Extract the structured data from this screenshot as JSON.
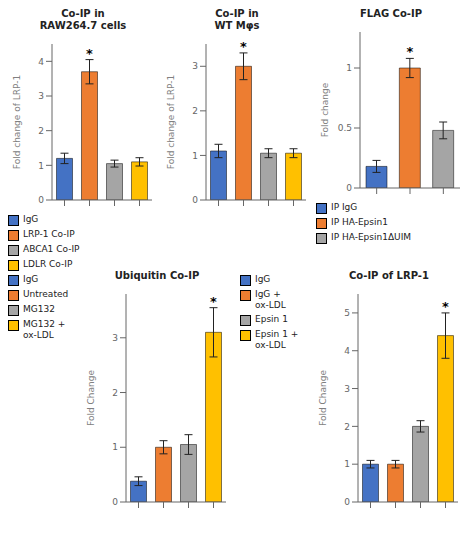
{
  "chart_data": [
    {
      "type": "bar",
      "title": "Co-IP in\nRAW264.7 cells",
      "ylabel": "Fold change of LRP-1",
      "categories": [
        null,
        null,
        null,
        null
      ],
      "values": [
        1.2,
        3.7,
        1.05,
        1.1
      ],
      "errors": [
        0.15,
        0.35,
        0.1,
        0.12
      ],
      "colors": [
        "#4472c4",
        "#ed7d31",
        "#a5a5a5",
        "#ffc000"
      ],
      "ylim": [
        0,
        4.5
      ],
      "yticks": [
        0,
        1,
        2,
        3,
        4
      ],
      "annotations": [
        {
          "text": "*",
          "at": 1
        }
      ]
    },
    {
      "type": "legend",
      "labels": [
        "IgG",
        "LRP-1 Co-IP",
        "ABCA1 Co-IP",
        "LDLR Co-IP"
      ],
      "colors": [
        "#4472c4",
        "#ed7d31",
        "#a5a5a5",
        "#ffc000"
      ]
    },
    {
      "type": "bar",
      "title": "Co-IP in\nWT Mφs",
      "ylabel": "Fold change of LRP-1",
      "categories": [
        null,
        null,
        null,
        null
      ],
      "values": [
        1.1,
        3.0,
        1.05,
        1.05
      ],
      "errors": [
        0.15,
        0.3,
        0.1,
        0.1
      ],
      "colors": [
        "#4472c4",
        "#ed7d31",
        "#a5a5a5",
        "#ffc000"
      ],
      "ylim": [
        0,
        3.5
      ],
      "yticks": [
        0,
        1,
        2,
        3
      ],
      "annotations": [
        {
          "text": "*",
          "at": 1
        }
      ]
    },
    {
      "type": "bar",
      "title": "FLAG Co-IP",
      "ylabel": "Fold change",
      "categories": [
        null,
        null,
        null
      ],
      "values": [
        0.18,
        1.0,
        0.48
      ],
      "errors": [
        0.05,
        0.08,
        0.07
      ],
      "colors": [
        "#4472c4",
        "#ed7d31",
        "#a5a5a5"
      ],
      "ylim": [
        0,
        1.3
      ],
      "yticks": [
        0,
        0.5,
        1
      ],
      "annotations": [
        {
          "text": "*",
          "at": 1
        }
      ]
    },
    {
      "type": "legend",
      "labels": [
        "IP IgG",
        "IP HA-Epsin1",
        "IP HA-Epsin1ΔUIM"
      ],
      "colors": [
        "#4472c4",
        "#ed7d31",
        "#a5a5a5"
      ]
    },
    {
      "type": "legend",
      "labels": [
        "IgG",
        "Untreated",
        "MG132",
        "MG132 +\nox-LDL"
      ],
      "colors": [
        "#4472c4",
        "#ed7d31",
        "#a5a5a5",
        "#ffc000"
      ]
    },
    {
      "type": "bar",
      "title": "Ubiquitin Co-IP",
      "ylabel": "Fold Change",
      "categories": [
        null,
        null,
        null,
        null
      ],
      "values": [
        0.38,
        1.0,
        1.05,
        3.1
      ],
      "errors": [
        0.08,
        0.12,
        0.18,
        0.45
      ],
      "colors": [
        "#4472c4",
        "#ed7d31",
        "#a5a5a5",
        "#ffc000"
      ],
      "ylim": [
        0,
        3.8
      ],
      "yticks": [
        0,
        1,
        2,
        3
      ],
      "annotations": [
        {
          "text": "*",
          "at": 3
        }
      ]
    },
    {
      "type": "legend",
      "labels": [
        "IgG",
        "IgG +\nox-LDL",
        "Epsin 1",
        "Epsin 1 +\nox-LDL"
      ],
      "colors": [
        "#4472c4",
        "#ed7d31",
        "#a5a5a5",
        "#ffc000"
      ]
    },
    {
      "type": "bar",
      "title": "Co-IP of LRP-1",
      "ylabel": "Fold Change",
      "categories": [
        null,
        null,
        null,
        null
      ],
      "values": [
        1.0,
        1.0,
        2.0,
        4.4
      ],
      "errors": [
        0.1,
        0.1,
        0.15,
        0.6
      ],
      "colors": [
        "#4472c4",
        "#ed7d31",
        "#a5a5a5",
        "#ffc000"
      ],
      "ylim": [
        0,
        5.5
      ],
      "yticks": [
        0,
        1,
        2,
        3,
        4,
        5
      ],
      "annotations": [
        {
          "text": "*",
          "at": 3
        }
      ]
    }
  ]
}
